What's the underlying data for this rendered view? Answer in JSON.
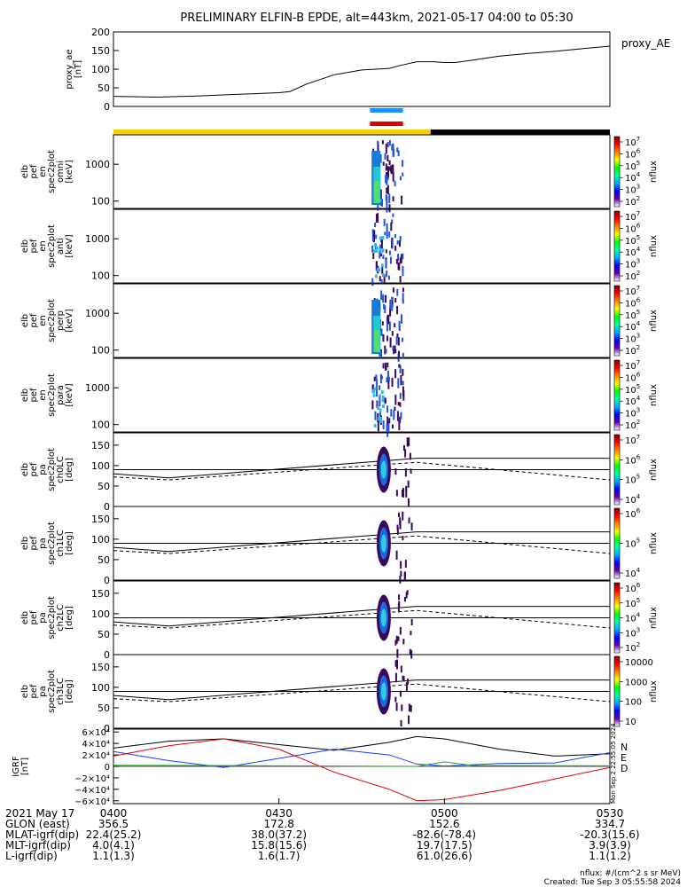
{
  "title": "PRELIMINARY ELFIN-B EPDE, alt=443km, 2021-05-17 04:00 to 05:30",
  "chart_data": {
    "type": "line",
    "time_axis": {
      "tick_labels": [
        "0400",
        "0430",
        "0500",
        "0530"
      ],
      "tick_minutes": [
        0,
        30,
        60,
        90
      ],
      "range_minutes": [
        0,
        90
      ]
    },
    "ae_panel": {
      "ylabel_lines": [
        "proxy_ae",
        "[nT]"
      ],
      "ylim": [
        0,
        200
      ],
      "yticks": [
        "0",
        "50",
        "100",
        "150",
        "200"
      ],
      "legend": "proxy_AE",
      "series": [
        {
          "name": "proxy_AE",
          "color": "#000000",
          "minutes": [
            0,
            8,
            15,
            20,
            25,
            30,
            32,
            35,
            40,
            45,
            50,
            52,
            55,
            58,
            60,
            62,
            65,
            70,
            75,
            80,
            85,
            90
          ],
          "values": [
            27,
            25,
            28,
            31,
            34,
            37,
            40,
            60,
            85,
            98,
            102,
            110,
            120,
            120,
            118,
            118,
            124,
            135,
            142,
            148,
            155,
            162
          ]
        }
      ]
    },
    "status_bars": {
      "blue_segment_minutes": [
        46.5,
        52.5
      ],
      "red_segment_minutes": [
        46.5,
        52.5
      ],
      "yellow_until_minutes": 57.5,
      "colors": {
        "blue": "#1e90ff",
        "red": "#e00000",
        "yellow": "#f5d000",
        "black": "#000000"
      }
    },
    "spec_panels": [
      {
        "ylabel_lines": [
          "elb",
          "pef",
          "en",
          "spec2plot",
          "omni",
          "[keV]"
        ],
        "yticks": [
          "100",
          "1000"
        ],
        "ylog_range": [
          63,
          6300
        ],
        "cbar_ticks": [
          "10",
          "10",
          "10",
          "10",
          "10",
          "10"
        ],
        "cbar_exps": [
          "7",
          "6",
          "5",
          "4",
          "3",
          "2"
        ],
        "cbar_label": "nflux"
      },
      {
        "ylabel_lines": [
          "elb",
          "pef",
          "en",
          "spec2plot",
          "anti",
          "[keV]"
        ],
        "yticks": [
          "100",
          "1000"
        ],
        "ylog_range": [
          63,
          6300
        ],
        "cbar_ticks": [
          "10",
          "10",
          "10",
          "10",
          "10",
          "10"
        ],
        "cbar_exps": [
          "7",
          "6",
          "5",
          "4",
          "3",
          "2"
        ],
        "cbar_label": "nflux"
      },
      {
        "ylabel_lines": [
          "elb",
          "pef",
          "en",
          "spec2plot",
          "perp",
          "[keV]"
        ],
        "yticks": [
          "100",
          "1000"
        ],
        "ylog_range": [
          63,
          6300
        ],
        "cbar_ticks": [
          "10",
          "10",
          "10",
          "10",
          "10",
          "10"
        ],
        "cbar_exps": [
          "7",
          "6",
          "5",
          "4",
          "3",
          "2"
        ],
        "cbar_label": "nflux"
      },
      {
        "ylabel_lines": [
          "elb",
          "pef",
          "en",
          "spec2plot",
          "para",
          "[keV]"
        ],
        "yticks": [
          "100",
          "1000"
        ],
        "ylog_range": [
          63,
          6300
        ],
        "cbar_ticks": [
          "10",
          "10",
          "10",
          "10",
          "10",
          "10"
        ],
        "cbar_exps": [
          "7",
          "6",
          "5",
          "4",
          "3",
          "2"
        ],
        "cbar_label": "nflux"
      }
    ],
    "pa_panels": [
      {
        "ylabel_lines": [
          "elb",
          "pef",
          "pa",
          "spec2plot",
          "ch0LC",
          "[deg]"
        ],
        "yticks": [
          "0",
          "50",
          "100",
          "150"
        ],
        "ylim": [
          0,
          180
        ],
        "cbar_ticks": [
          "10",
          "10",
          "10",
          "10"
        ],
        "cbar_exps": [
          "7",
          "6",
          "5",
          "4"
        ],
        "cbar_label": "nflux"
      },
      {
        "ylabel_lines": [
          "elb",
          "pef",
          "pa",
          "spec2plot",
          "ch1LC",
          "[deg]"
        ],
        "yticks": [
          "0",
          "50",
          "100",
          "150"
        ],
        "ylim": [
          0,
          180
        ],
        "cbar_ticks": [
          "10",
          "10",
          "10"
        ],
        "cbar_exps": [
          "6",
          "5",
          "4"
        ],
        "cbar_label": "nflux"
      },
      {
        "ylabel_lines": [
          "elb",
          "pef",
          "pa",
          "spec2plot",
          "ch2LC",
          "[deg]"
        ],
        "yticks": [
          "0",
          "50",
          "100",
          "150"
        ],
        "ylim": [
          0,
          180
        ],
        "cbar_ticks": [
          "10",
          "10",
          "10",
          "10",
          "10"
        ],
        "cbar_exps": [
          "6",
          "5",
          "4",
          "3",
          "2"
        ],
        "cbar_label": "nflux"
      },
      {
        "ylabel_lines": [
          "elb",
          "pef",
          "pa",
          "spec2plot",
          "ch3LC",
          "[deg]"
        ],
        "yticks": [
          "0",
          "50",
          "100",
          "150"
        ],
        "ylim": [
          0,
          180
        ],
        "cbar_ticks": [
          "10000",
          "1000",
          "100",
          "10"
        ],
        "cbar_exps": [
          "",
          "",
          "",
          ""
        ],
        "cbar_label": "nflux"
      }
    ],
    "pa_lines": {
      "upper_minutes": [
        0,
        10,
        55,
        90
      ],
      "upper_values": [
        80,
        70,
        118,
        118
      ],
      "lower_minutes": [
        0,
        10,
        55,
        90
      ],
      "lower_values": [
        72,
        65,
        108,
        65
      ],
      "flat_minutes": [
        0,
        90
      ],
      "flat_values": [
        90,
        90
      ]
    },
    "igrf_panel": {
      "ylabel_lines": [
        "IGRF",
        "[nT]"
      ],
      "yticks": [
        "6×10⁴",
        "4×10⁴",
        "2×10⁴",
        "0",
        "−2×10⁴",
        "−4×10⁴",
        "−6×10⁴"
      ],
      "ylim": [
        -65000,
        65000
      ],
      "legend": [
        "N",
        "E",
        "D"
      ],
      "series": [
        {
          "name": "N",
          "color": "#000000",
          "minutes": [
            0,
            10,
            20,
            30,
            40,
            50,
            55,
            60,
            70,
            80,
            90
          ],
          "values": [
            32000,
            44000,
            48000,
            38000,
            28000,
            42000,
            52000,
            48000,
            30000,
            18000,
            22000
          ]
        },
        {
          "name": "E",
          "color": "#1a3cff",
          "minutes": [
            0,
            10,
            20,
            30,
            40,
            50,
            55,
            60,
            70,
            80,
            90
          ],
          "values": [
            26000,
            10000,
            -2000,
            14000,
            30000,
            20000,
            4000,
            500,
            5000,
            6000,
            24000
          ]
        },
        {
          "name": "D",
          "color": "#e00000",
          "minutes": [
            0,
            10,
            20,
            30,
            40,
            50,
            55,
            60,
            70,
            80,
            90
          ],
          "values": [
            18000,
            36000,
            48000,
            30000,
            -10000,
            -40000,
            -60000,
            -58000,
            -42000,
            -22000,
            -2000
          ]
        },
        {
          "name": "",
          "color": "#22aa22",
          "minutes": [
            0,
            30,
            55,
            60,
            65,
            90
          ],
          "values": [
            2000,
            1000,
            0,
            8000,
            1500,
            1000
          ]
        }
      ]
    },
    "stamp": "Mon Sep 2 22:55:05 2024"
  },
  "footer": {
    "row_labels": [
      "2021 May 17",
      "GLON (east)",
      "MLAT-igrf(dip)",
      "MLT-igrf(dip)",
      "L-igrf(dip)"
    ],
    "columns": [
      [
        "0400",
        "356.5",
        "22.4(25.2)",
        "4.0(4.1)",
        "1.1(1.3)"
      ],
      [
        "0430",
        "172.8",
        "38.0(37.2)",
        "15.8(15.6)",
        "1.6(1.7)"
      ],
      [
        "0500",
        "152.6",
        "-82.6(-78.4)",
        "19.7(17.5)",
        "61.0(26.6)"
      ],
      [
        "0530",
        "334.7",
        "-20.3(15.6)",
        "3.9(3.9)",
        "1.1(1.2)"
      ]
    ],
    "nflux_note": "nflux: #/(cm^2 s sr MeV)",
    "created": "Created: Tue Sep  3 05:55:58 2024"
  }
}
